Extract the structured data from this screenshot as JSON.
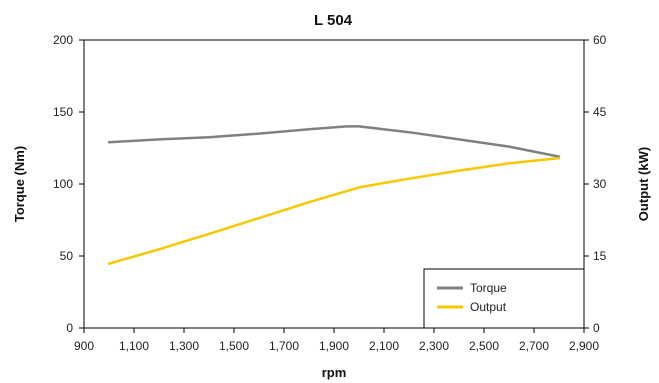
{
  "chart_data": {
    "type": "line",
    "title": "L 504",
    "xlabel": "rpm",
    "ylabel_left": "Torque (Nm)",
    "ylabel_right": "Output (kW)",
    "xlim": [
      900,
      2900
    ],
    "ylim_left": [
      0,
      200
    ],
    "ylim_right": [
      0,
      60
    ],
    "x_ticks": [
      900,
      1100,
      1300,
      1500,
      1700,
      1900,
      2100,
      2300,
      2500,
      2700,
      2900
    ],
    "x_tick_labels": [
      "900",
      "1,100",
      "1,300",
      "1,500",
      "1,700",
      "1,900",
      "2,100",
      "2,300",
      "2,500",
      "2,700",
      "2,900"
    ],
    "y_left_ticks": [
      0,
      50,
      100,
      150,
      200
    ],
    "y_left_tick_labels": [
      "0",
      "50",
      "100",
      "150",
      "200"
    ],
    "y_right_ticks": [
      0,
      15,
      30,
      45,
      60
    ],
    "y_right_tick_labels": [
      "0",
      "15",
      "30",
      "45",
      "60"
    ],
    "grid": false,
    "legend": {
      "placement": "bottom-right"
    },
    "series": [
      {
        "name": "Torque",
        "axis": "left",
        "color": "#808080",
        "x": [
          1000,
          1200,
          1400,
          1600,
          1800,
          1950,
          2000,
          2200,
          2400,
          2600,
          2800
        ],
        "y": [
          129,
          131,
          132.5,
          135,
          138,
          140,
          140,
          136,
          131,
          126,
          119
        ]
      },
      {
        "name": "Output",
        "axis": "right",
        "color": "#f5c800",
        "x": [
          1000,
          1200,
          1400,
          1600,
          1800,
          2000,
          2200,
          2400,
          2600,
          2800
        ],
        "y": [
          13.4,
          16.4,
          19.6,
          22.9,
          26.2,
          29.3,
          31.1,
          32.8,
          34.3,
          35.4
        ]
      }
    ]
  }
}
